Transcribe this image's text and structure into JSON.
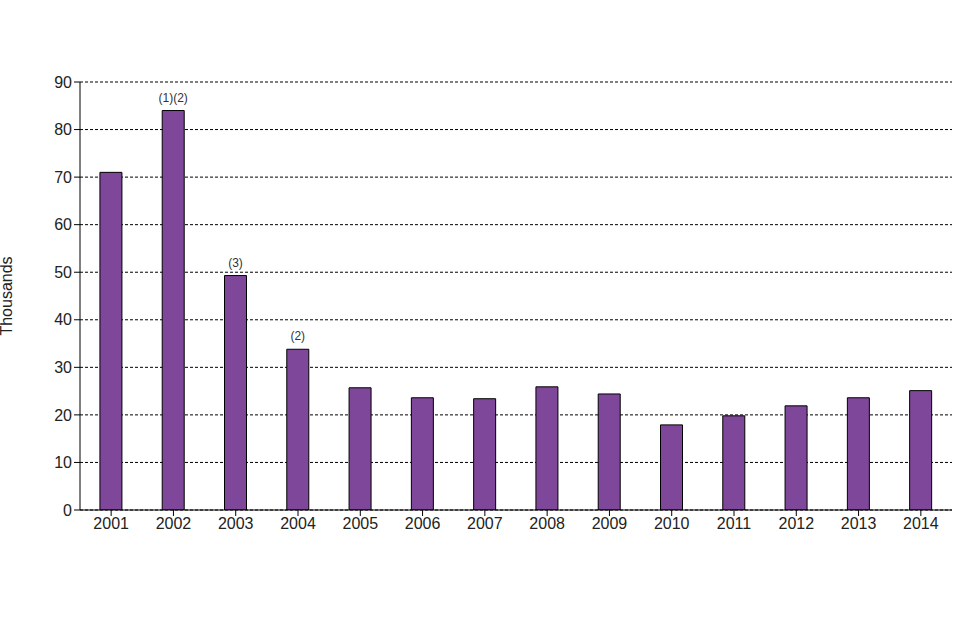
{
  "chart_data": {
    "type": "bar",
    "y_label": "Thousands",
    "categories": [
      "2001",
      "2002",
      "2003",
      "2004",
      "2005",
      "2006",
      "2007",
      "2008",
      "2009",
      "2010",
      "2011",
      "2012",
      "2013",
      "2014"
    ],
    "values": [
      71,
      84,
      49.3,
      33.8,
      25.7,
      23.6,
      23.4,
      25.9,
      24.4,
      17.9,
      19.8,
      21.9,
      23.6,
      25.1
    ],
    "annotations": [
      null,
      "(1)(2)",
      "(3)",
      "(2)",
      null,
      null,
      null,
      null,
      null,
      null,
      null,
      null,
      null,
      null
    ],
    "color": "#7f4799",
    "ylim": [
      0,
      90
    ],
    "yticks": [
      0,
      10,
      20,
      30,
      40,
      50,
      60,
      70,
      80,
      90
    ],
    "grid": true
  }
}
